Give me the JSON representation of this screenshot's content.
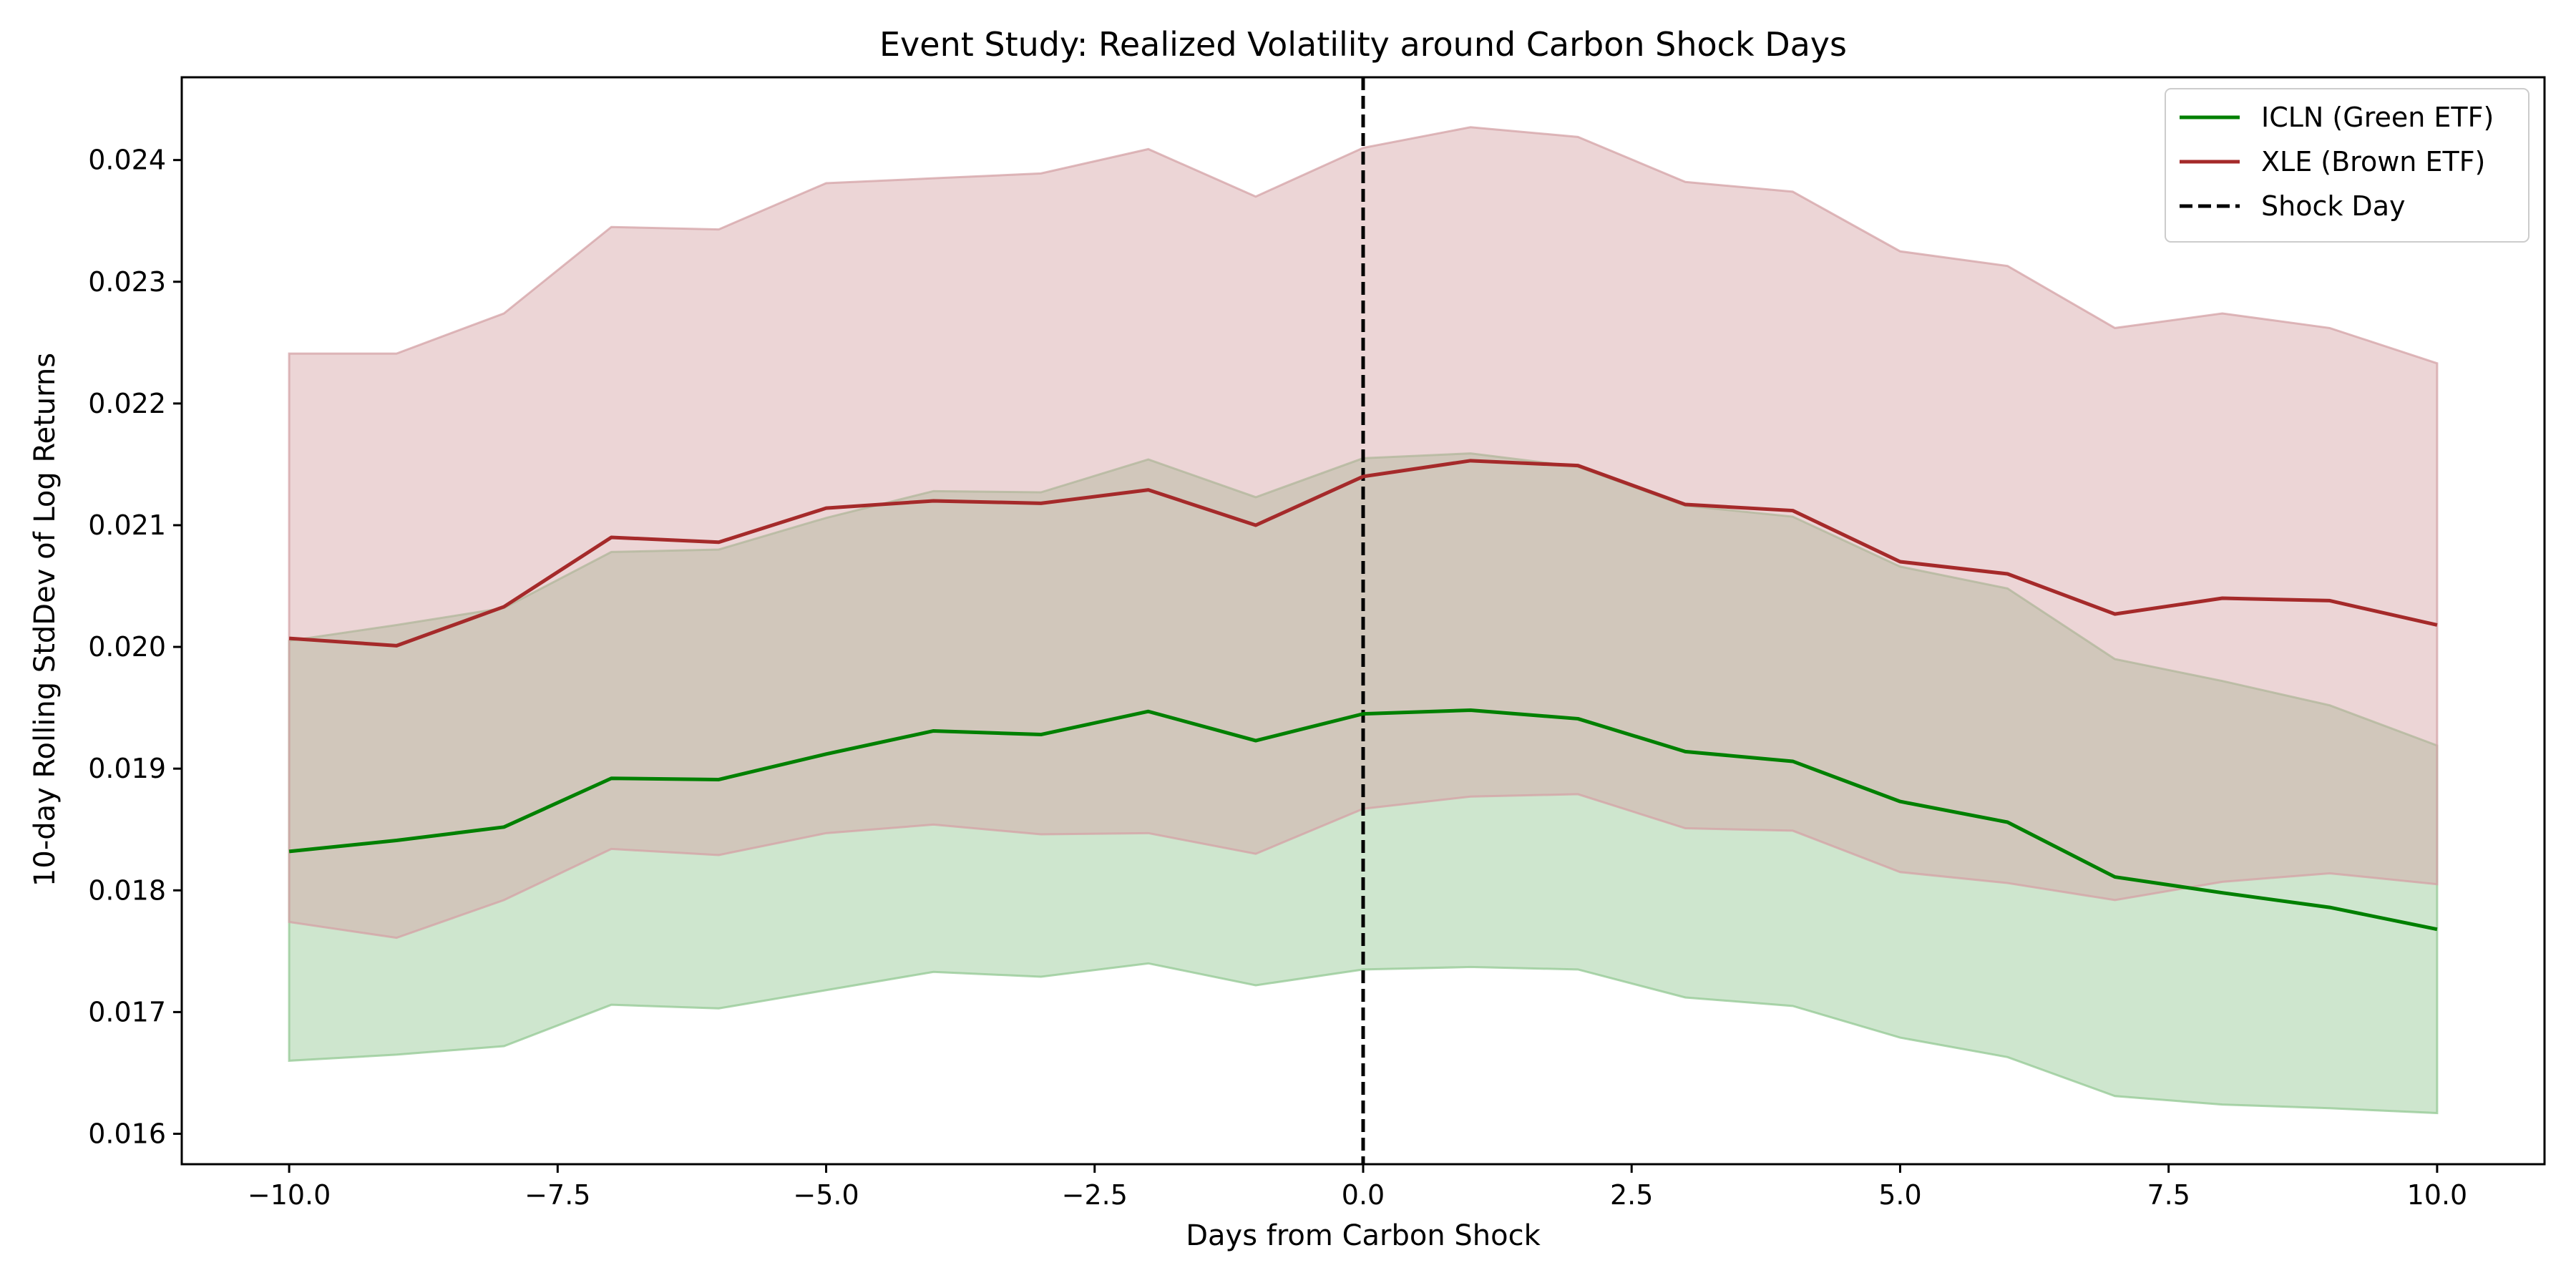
{
  "chart_data": {
    "type": "line",
    "title": "Event Study: Realized Volatility around Carbon Shock Days",
    "xlabel": "Days from Carbon Shock",
    "ylabel": "10-day Rolling StdDev of Log Returns",
    "xlim": [
      -11,
      11
    ],
    "ylim": [
      0.01575,
      0.02468
    ],
    "x_ticks": [
      -10.0,
      -7.5,
      -5.0,
      -2.5,
      0.0,
      2.5,
      5.0,
      7.5,
      10.0
    ],
    "x_tick_labels": [
      "−10.0",
      "−7.5",
      "−5.0",
      "−2.5",
      "0.0",
      "2.5",
      "5.0",
      "7.5",
      "10.0"
    ],
    "y_ticks": [
      0.016,
      0.017,
      0.018,
      0.019,
      0.02,
      0.021,
      0.022,
      0.023,
      0.024
    ],
    "y_tick_labels": [
      "0.016",
      "0.017",
      "0.018",
      "0.019",
      "0.020",
      "0.021",
      "0.022",
      "0.023",
      "0.024"
    ],
    "grid": false,
    "legend_position": "top-right",
    "x": [
      -10,
      -9,
      -8,
      -7,
      -6,
      -5,
      -4,
      -3,
      -2,
      -1,
      0,
      1,
      2,
      3,
      4,
      5,
      6,
      7,
      8,
      9,
      10
    ],
    "series": [
      {
        "name": "ICLN (Green ETF)",
        "color": "#008000",
        "band_color": "#93c893",
        "values": [
          0.01832,
          0.01841,
          0.01852,
          0.01892,
          0.01891,
          0.01912,
          0.01931,
          0.01928,
          0.01947,
          0.01923,
          0.01945,
          0.01948,
          0.01941,
          0.01914,
          0.01906,
          0.01873,
          0.01856,
          0.01811,
          0.01798,
          0.01786,
          0.01768
        ],
        "lower": [
          0.0166,
          0.01665,
          0.01672,
          0.01706,
          0.01703,
          0.01718,
          0.01733,
          0.01729,
          0.0174,
          0.01722,
          0.01735,
          0.01737,
          0.01735,
          0.01712,
          0.01705,
          0.01679,
          0.01663,
          0.01631,
          0.01624,
          0.01621,
          0.01617
        ],
        "upper": [
          0.02005,
          0.02018,
          0.02032,
          0.02078,
          0.0208,
          0.02106,
          0.02128,
          0.02127,
          0.02154,
          0.02123,
          0.02155,
          0.02159,
          0.02148,
          0.02116,
          0.02107,
          0.02066,
          0.02048,
          0.0199,
          0.01972,
          0.01952,
          0.01919
        ]
      },
      {
        "name": "XLE (Brown ETF)",
        "color": "#a52a2a",
        "band_color": "#d4a1a5",
        "values": [
          0.02007,
          0.02001,
          0.02033,
          0.0209,
          0.02086,
          0.02114,
          0.0212,
          0.02118,
          0.02129,
          0.021,
          0.0214,
          0.02153,
          0.02149,
          0.02117,
          0.02112,
          0.0207,
          0.0206,
          0.02027,
          0.0204,
          0.02038,
          0.02018
        ],
        "lower": [
          0.01774,
          0.01761,
          0.01792,
          0.01834,
          0.01829,
          0.01847,
          0.01854,
          0.01846,
          0.01847,
          0.0183,
          0.01867,
          0.01877,
          0.01879,
          0.01851,
          0.01849,
          0.01815,
          0.01806,
          0.01792,
          0.01807,
          0.01814,
          0.01805
        ],
        "upper": [
          0.02241,
          0.02241,
          0.02274,
          0.02345,
          0.02343,
          0.02381,
          0.02385,
          0.02389,
          0.02409,
          0.0237,
          0.0241,
          0.02427,
          0.02419,
          0.02382,
          0.02374,
          0.02325,
          0.02313,
          0.02262,
          0.02274,
          0.02262,
          0.02233
        ]
      }
    ],
    "vlines": [
      {
        "name": "Shock Day",
        "x": 0,
        "color": "#000000",
        "style": "dashed"
      }
    ]
  }
}
